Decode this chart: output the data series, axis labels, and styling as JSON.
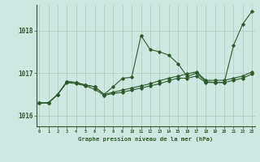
{
  "title": "Graphe pression niveau de la mer (hPa)",
  "background_color": "#cce8e0",
  "line_color": "#2d5a2d",
  "grid_color": "#aaccbb",
  "x_ticks": [
    0,
    1,
    2,
    3,
    4,
    5,
    6,
    7,
    8,
    9,
    10,
    11,
    12,
    13,
    14,
    15,
    16,
    17,
    18,
    19,
    20,
    21,
    22,
    23
  ],
  "ylim": [
    1015.75,
    1018.6
  ],
  "yticks": [
    1016,
    1017,
    1018
  ],
  "line1": [
    1016.3,
    1016.3,
    1016.5,
    1016.8,
    1016.78,
    1016.72,
    1016.68,
    1016.5,
    1016.68,
    1016.88,
    1016.9,
    1017.88,
    1017.55,
    1017.5,
    1017.42,
    1017.22,
    1016.92,
    1017.0,
    1016.8,
    1016.78,
    1016.78,
    1017.65,
    1018.15,
    1018.45
  ],
  "line2": [
    1016.3,
    1016.3,
    1016.5,
    1016.8,
    1016.78,
    1016.72,
    1016.68,
    1016.5,
    1016.55,
    1016.6,
    1016.65,
    1016.7,
    1016.75,
    1016.82,
    1016.88,
    1016.93,
    1016.98,
    1017.03,
    1016.83,
    1016.83,
    1016.83,
    1016.88,
    1016.93,
    1017.03
  ],
  "line3": [
    1016.3,
    1016.3,
    1016.5,
    1016.78,
    1016.75,
    1016.7,
    1016.62,
    1016.48,
    1016.52,
    1016.55,
    1016.6,
    1016.65,
    1016.7,
    1016.75,
    1016.82,
    1016.88,
    1016.88,
    1016.93,
    1016.78,
    1016.78,
    1016.78,
    1016.83,
    1016.88,
    1016.98
  ]
}
